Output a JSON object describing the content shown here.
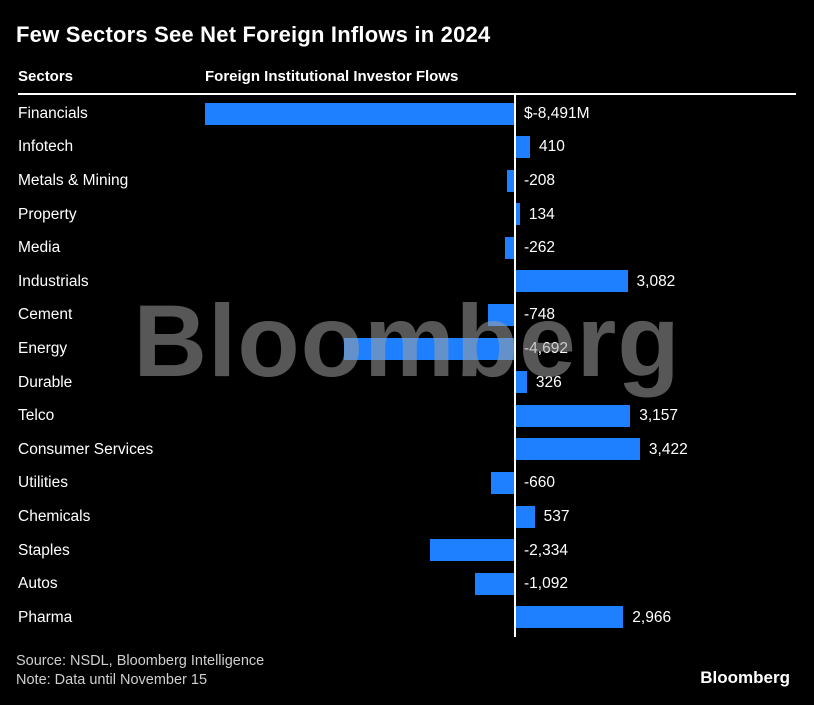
{
  "title": "Few Sectors See Net Foreign Inflows in 2024",
  "columns": {
    "sectors": "Sectors",
    "flows": "Foreign Institutional Investor Flows"
  },
  "watermark": "Bloomberg",
  "footer": {
    "source": "Source: NSDL, Bloomberg Intelligence",
    "note": "Note: Data until November 15",
    "logo": "Bloomberg"
  },
  "colors": {
    "background": "#000000",
    "bar": "#1e80ff",
    "text": "#ffffff",
    "axis": "#ffffff"
  },
  "chart_data": {
    "type": "bar",
    "orientation": "horizontal",
    "title": "Few Sectors See Net Foreign Inflows in 2024",
    "xlabel": "Foreign Institutional Investor Flows ($M)",
    "ylabel": "Sectors",
    "xlim": [
      -8600,
      3600
    ],
    "grid": false,
    "categories": [
      "Financials",
      "Infotech",
      "Metals & Mining",
      "Property",
      "Media",
      "Industrials",
      "Cement",
      "Energy",
      "Durable",
      "Telco",
      "Consumer Services",
      "Utilities",
      "Chemicals",
      "Staples",
      "Autos",
      "Pharma"
    ],
    "values": [
      -8491,
      410,
      -208,
      134,
      -262,
      3082,
      -748,
      -4692,
      326,
      3157,
      3422,
      -660,
      537,
      -2334,
      -1092,
      2966
    ],
    "value_labels": [
      "$-8,491M",
      "410",
      "-208",
      "134",
      "-262",
      "3,082",
      "-748",
      "-4,692",
      "326",
      "3,157",
      "3,422",
      "-660",
      "537",
      "-2,334",
      "-1,092",
      "2,966"
    ]
  }
}
